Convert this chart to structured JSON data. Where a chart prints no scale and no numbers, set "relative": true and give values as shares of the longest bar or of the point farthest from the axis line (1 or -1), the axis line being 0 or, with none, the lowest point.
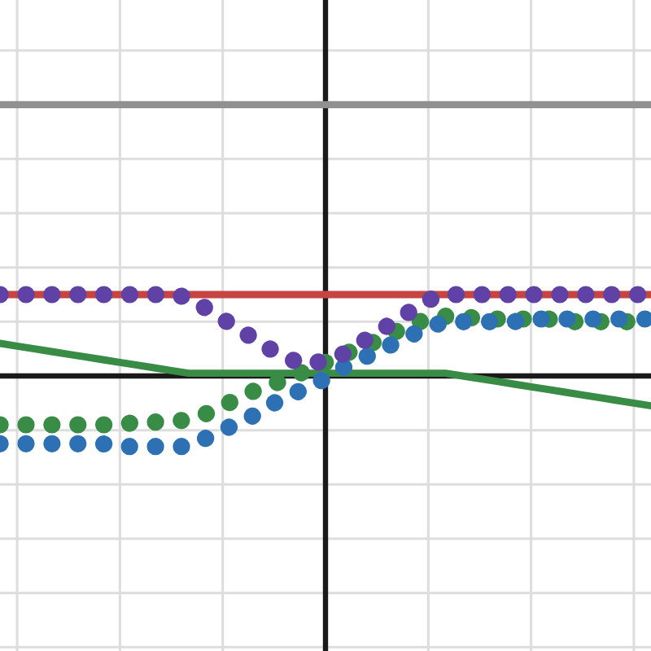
{
  "chart_data": {
    "type": "line",
    "relative": true,
    "grid": true,
    "tick_labels": false,
    "categories": [
      null,
      null,
      null,
      null,
      null,
      null,
      null,
      null,
      null,
      null,
      null,
      null,
      null,
      null,
      null,
      null,
      null,
      null,
      null,
      null,
      null,
      null,
      null,
      null,
      null,
      null,
      null,
      null,
      null,
      null,
      null,
      null,
      null,
      null,
      null,
      null,
      null,
      null,
      null
    ],
    "series": [
      {
        "color": "#909090",
        "line_style": "solid",
        "values": [
          1,
          1,
          1,
          1,
          1,
          1,
          1,
          1,
          1,
          1,
          1,
          1,
          1,
          1,
          1,
          1,
          1,
          1,
          1,
          1,
          1,
          1,
          1,
          1,
          1,
          1,
          1,
          1,
          1,
          1,
          1,
          1,
          1,
          1,
          1,
          1,
          1,
          1,
          1
        ]
      },
      {
        "color": "#c74440",
        "line_style": "solid",
        "values": [
          0.3,
          0.3,
          0.3,
          0.3,
          0.3,
          0.3,
          0.3,
          0.3,
          0.3,
          0.3,
          0.3,
          0.3,
          0.3,
          0.3,
          0.3,
          0.3,
          0.3,
          0.3,
          0.3,
          0.3,
          0.3,
          0.3,
          0.3,
          0.3,
          0.3,
          0.3,
          0.3,
          0.3,
          0.3,
          0.3,
          0.3,
          0.3,
          0.3,
          0.3,
          0.3,
          0.3,
          0.3,
          0.3,
          0.3
        ]
      },
      {
        "color": "#388c46",
        "line_style": "solid",
        "values": [
          0.12,
          0.11,
          0.1,
          0.09,
          0.08,
          0.07,
          0.06,
          0.05,
          0.04,
          0.03,
          0.02,
          0.01,
          0.01,
          0.01,
          0.01,
          0.01,
          0.01,
          0.01,
          0.01,
          0.01,
          0.01,
          0.01,
          0.01,
          0.01,
          0.01,
          0.01,
          0.01,
          0.0,
          -0.01,
          -0.02,
          -0.03,
          -0.04,
          -0.05,
          -0.06,
          -0.07,
          -0.08,
          -0.09,
          -0.1,
          -0.11
        ]
      },
      {
        "color": "#388c46",
        "line_style": "dotted",
        "values": [
          -0.18,
          -0.18,
          -0.18,
          -0.18,
          -0.18,
          -0.18,
          -0.18,
          -0.18,
          -0.17,
          -0.17,
          -0.17,
          -0.16,
          -0.14,
          -0.11,
          -0.08,
          -0.05,
          -0.03,
          0.0,
          0.02,
          0.05,
          0.08,
          0.1,
          0.13,
          0.16,
          0.19,
          0.21,
          0.22,
          0.22,
          0.21,
          0.21,
          0.21,
          0.21,
          0.21,
          0.2,
          0.2,
          0.2,
          0.2,
          0.2,
          0.2
        ]
      },
      {
        "color": "#2d70b3",
        "line_style": "dotted",
        "values": [
          -0.25,
          -0.25,
          -0.25,
          -0.25,
          -0.25,
          -0.25,
          -0.25,
          -0.26,
          -0.26,
          -0.26,
          -0.26,
          -0.26,
          -0.23,
          -0.2,
          -0.17,
          -0.14,
          -0.1,
          -0.07,
          -0.04,
          -0.01,
          0.03,
          0.06,
          0.09,
          0.12,
          0.15,
          0.18,
          0.2,
          0.2,
          0.2,
          0.2,
          0.2,
          0.21,
          0.21,
          0.21,
          0.21,
          0.21,
          0.21,
          0.21,
          0.21
        ]
      },
      {
        "color": "#6042a6",
        "line_style": "dotted",
        "values": [
          0.3,
          0.3,
          0.3,
          0.3,
          0.3,
          0.3,
          0.3,
          0.3,
          0.3,
          0.3,
          0.3,
          0.29,
          0.25,
          0.21,
          0.17,
          0.13,
          0.09,
          0.06,
          0.04,
          0.06,
          0.08,
          0.12,
          0.16,
          0.2,
          0.24,
          0.28,
          0.3,
          0.3,
          0.3,
          0.3,
          0.3,
          0.3,
          0.3,
          0.3,
          0.3,
          0.3,
          0.3,
          0.3,
          0.3
        ]
      }
    ]
  }
}
